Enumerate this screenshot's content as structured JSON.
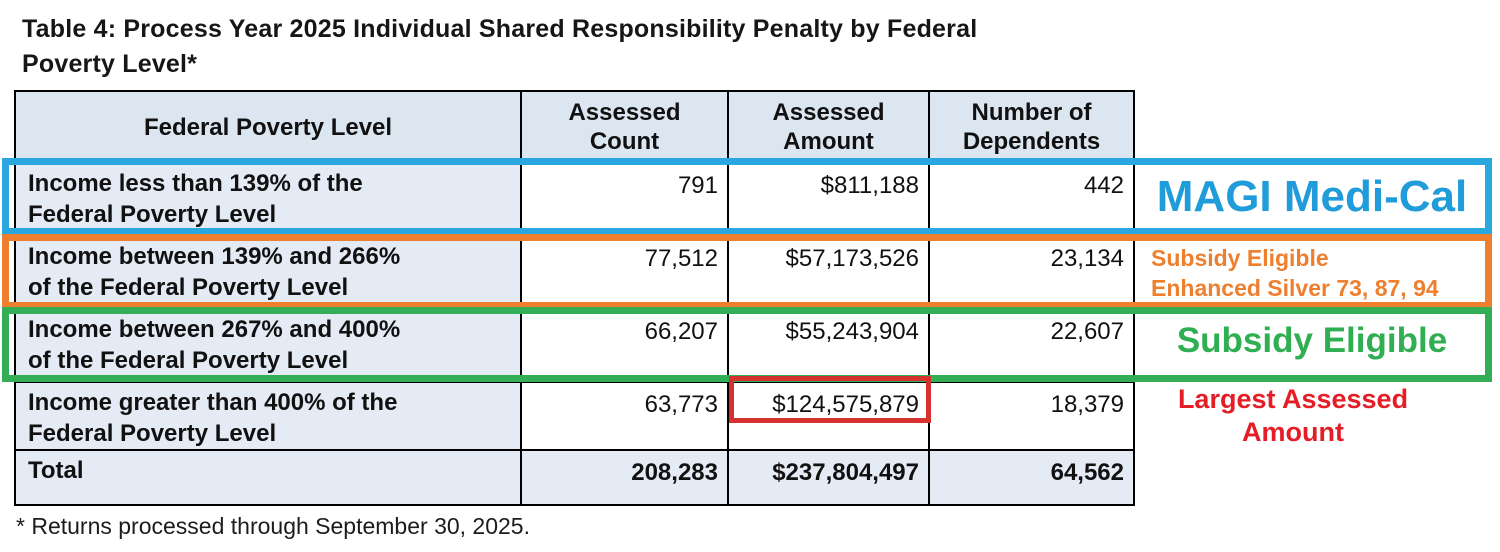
{
  "title": "Table 4: Process Year 2025 Individual Shared Responsibility Penalty by Federal\nPoverty Level*",
  "footnote": "* Returns processed through September 30, 2025.",
  "table": {
    "headers": [
      "Federal Poverty Level",
      "Assessed\nCount",
      "Assessed\nAmount",
      "Number of\nDependents"
    ],
    "rows": [
      {
        "label": "Income less than 139% of the\nFederal Poverty Level",
        "assessed_count": "791",
        "assessed_amount": "$811,188",
        "dependents": "442"
      },
      {
        "label": "Income between 139% and 266%\nof the Federal Poverty Level",
        "assessed_count": "77,512",
        "assessed_amount": "$57,173,526",
        "dependents": "23,134"
      },
      {
        "label": "Income between 267% and 400%\nof the Federal Poverty Level",
        "assessed_count": "66,207",
        "assessed_amount": "$55,243,904",
        "dependents": "22,607"
      },
      {
        "label": "Income greater than 400% of the\nFederal Poverty Level",
        "assessed_count": "63,773",
        "assessed_amount": "$124,575,879",
        "dependents": "18,379"
      }
    ],
    "total": {
      "label": "Total",
      "assessed_count": "208,283",
      "assessed_amount": "$237,804,497",
      "dependents": "64,562"
    }
  },
  "annotations": {
    "magi": {
      "label": "MAGI Medi-Cal"
    },
    "subsidy_enhanced": {
      "text": "Subsidy Eligible\nEnhanced Silver 73, 87, 94"
    },
    "subsidy_eligible": {
      "label": "Subsidy Eligible"
    },
    "largest_assessed": {
      "text": "Largest Assessed\nAmount"
    }
  },
  "colors": {
    "box_blue": "#2aa7df",
    "box_orange": "#ee7f2e",
    "box_green": "#33ae56",
    "box_red": "#d5312e",
    "text_blue": "#1f9cd9",
    "text_orange": "#ee7f2e",
    "text_green": "#2fae52",
    "text_red": "#e41e26",
    "header_bg": "#dce6f1",
    "row_bg": "#e4ebf4",
    "border": "#000000"
  }
}
